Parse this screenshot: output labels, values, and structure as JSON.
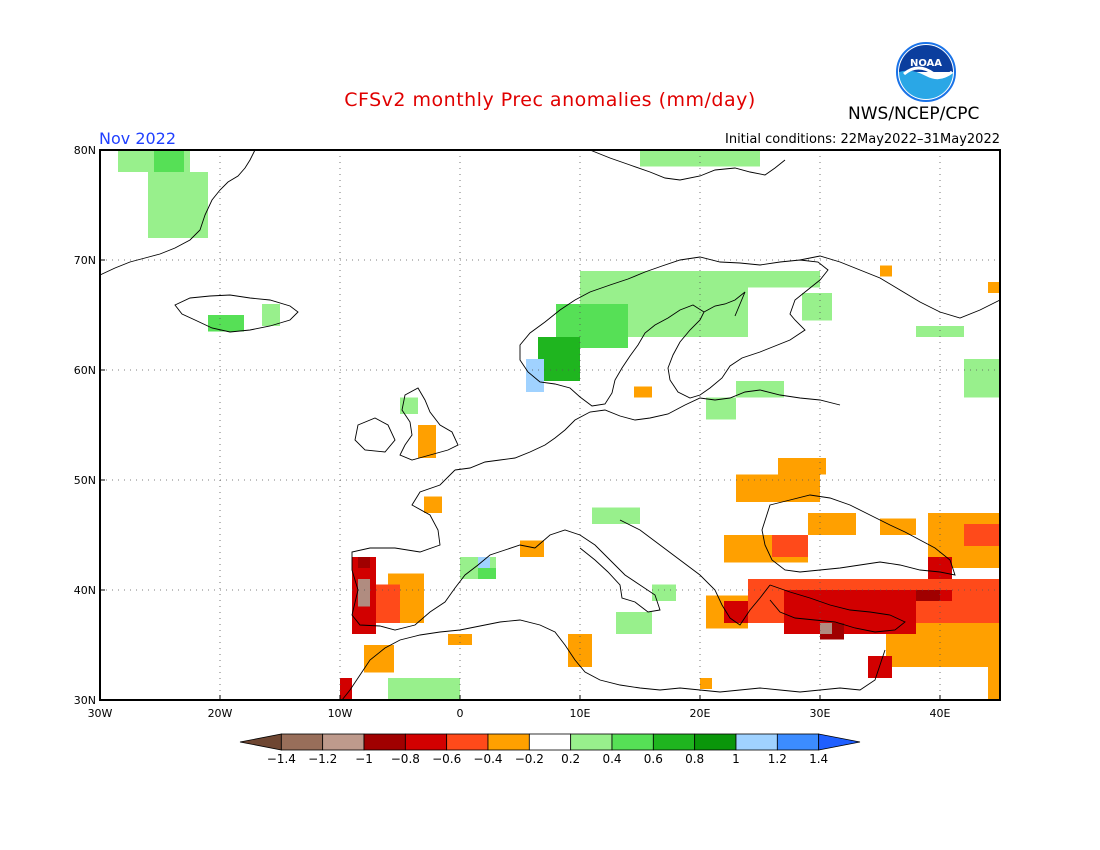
{
  "header": {
    "title": "CFSv2 monthly Prec anomalies (mm/day)",
    "agency": "NWS/NCEP/CPC",
    "logo_text": "NOAA",
    "month": "Nov 2022",
    "initial_conditions": "Initial conditions: 22May2022–31May2022"
  },
  "map": {
    "lon_range": [
      -30,
      45
    ],
    "lat_range": [
      30,
      80
    ],
    "x_ticks": [
      {
        "lon": -30,
        "label": "30W"
      },
      {
        "lon": -20,
        "label": "20W"
      },
      {
        "lon": -10,
        "label": "10W"
      },
      {
        "lon": 0,
        "label": "0"
      },
      {
        "lon": 10,
        "label": "10E"
      },
      {
        "lon": 20,
        "label": "20E"
      },
      {
        "lon": 30,
        "label": "30E"
      },
      {
        "lon": 40,
        "label": "40E"
      }
    ],
    "y_ticks": [
      {
        "lat": 80,
        "label": "80N"
      },
      {
        "lat": 70,
        "label": "70N"
      },
      {
        "lat": 60,
        "label": "60N"
      },
      {
        "lat": 50,
        "label": "50N"
      },
      {
        "lat": 40,
        "label": "40N"
      },
      {
        "lat": 30,
        "label": "30N"
      }
    ],
    "grid": "dotted",
    "anomaly_regions": [
      {
        "level": "0.2 to 0.4",
        "color": "#98f08c",
        "lon": [
          -28.5,
          -22.5
        ],
        "lat": [
          78,
          80
        ]
      },
      {
        "level": "0.4 to 0.6",
        "color": "#56e056",
        "lon": [
          -25.5,
          -23
        ],
        "lat": [
          78,
          80
        ]
      },
      {
        "level": "0.2 to 0.4",
        "color": "#98f08c",
        "lon": [
          -26,
          -21
        ],
        "lat": [
          72,
          78
        ]
      },
      {
        "level": "0.2 to 0.4",
        "color": "#98f08c",
        "lon": [
          -16.5,
          -15
        ],
        "lat": [
          64,
          66
        ]
      },
      {
        "level": "0.4 to 0.6",
        "color": "#56e056",
        "lon": [
          -21,
          -18
        ],
        "lat": [
          63.5,
          65
        ]
      },
      {
        "level": "0.2 to 0.4",
        "color": "#98f08c",
        "lon": [
          15,
          25
        ],
        "lat": [
          78.5,
          80
        ]
      },
      {
        "level": "0.2 to 0.4",
        "color": "#98f08c",
        "lon": [
          10,
          24
        ],
        "lat": [
          63,
          69
        ]
      },
      {
        "level": "0.2 to 0.4",
        "color": "#98f08c",
        "lon": [
          24,
          30
        ],
        "lat": [
          67.5,
          69
        ]
      },
      {
        "level": "0.2 to 0.4",
        "color": "#98f08c",
        "lon": [
          28.5,
          31
        ],
        "lat": [
          64.5,
          67
        ]
      },
      {
        "level": "0.4 to 0.6",
        "color": "#56e056",
        "lon": [
          8,
          14
        ],
        "lat": [
          62,
          66
        ]
      },
      {
        "level": "0.6 to 0.8",
        "color": "#1fb51f",
        "lon": [
          6.5,
          10
        ],
        "lat": [
          59,
          63
        ]
      },
      {
        "level": "1 to 1.2",
        "color": "#a0d2ff",
        "lon": [
          5.5,
          7
        ],
        "lat": [
          58,
          61
        ]
      },
      {
        "level": "0.2 to 0.4",
        "color": "#98f08c",
        "lon": [
          23,
          27
        ],
        "lat": [
          57.5,
          59
        ]
      },
      {
        "level": "0.2 to 0.4",
        "color": "#98f08c",
        "lon": [
          20.5,
          23
        ],
        "lat": [
          55.5,
          57.5
        ]
      },
      {
        "level": "0.2 to 0.4",
        "color": "#98f08c",
        "lon": [
          38,
          42
        ],
        "lat": [
          63,
          64
        ]
      },
      {
        "level": "0.2 to 0.4",
        "color": "#98f08c",
        "lon": [
          42,
          45
        ],
        "lat": [
          57.5,
          61
        ]
      },
      {
        "level": "0.2 to 0.4",
        "color": "#98f08c",
        "lon": [
          -5,
          -3.5
        ],
        "lat": [
          56,
          57.5
        ]
      },
      {
        "level": "0.2 to 0.4",
        "color": "#98f08c",
        "lon": [
          11,
          15
        ],
        "lat": [
          46,
          47.5
        ]
      },
      {
        "level": "0.2 to 0.4",
        "color": "#98f08c",
        "lon": [
          0,
          3
        ],
        "lat": [
          41,
          43
        ]
      },
      {
        "level": "1 to 1.2",
        "color": "#a0d2ff",
        "lon": [
          1.5,
          2.5
        ],
        "lat": [
          42,
          43
        ]
      },
      {
        "level": "0.4 to 0.6",
        "color": "#56e056",
        "lon": [
          1.5,
          3
        ],
        "lat": [
          41,
          42
        ]
      },
      {
        "level": "0.2 to 0.4",
        "color": "#98f08c",
        "lon": [
          -6,
          0
        ],
        "lat": [
          30,
          32
        ]
      },
      {
        "level": "0.2 to 0.4",
        "color": "#98f08c",
        "lon": [
          16,
          18
        ],
        "lat": [
          39,
          40.5
        ]
      },
      {
        "level": "-0.4 to -0.2",
        "color": "#ffa000",
        "lon": [
          -3.5,
          -2
        ],
        "lat": [
          52,
          55
        ]
      },
      {
        "level": "-0.4 to -0.2",
        "color": "#ffa000",
        "lon": [
          -3,
          -1.5
        ],
        "lat": [
          47,
          48.5
        ]
      },
      {
        "level": "-0.4 to -0.2",
        "color": "#ffa000",
        "lon": [
          5,
          7
        ],
        "lat": [
          43,
          44.5
        ]
      },
      {
        "level": "-0.4 to -0.2",
        "color": "#ffa000",
        "lon": [
          -1,
          1
        ],
        "lat": [
          35,
          36
        ]
      },
      {
        "level": "-0.4 to -0.2",
        "color": "#ffa000",
        "lon": [
          9,
          11
        ],
        "lat": [
          33,
          36
        ]
      },
      {
        "level": "-0.4 to -0.2",
        "color": "#ffa000",
        "lon": [
          -8,
          -5.5
        ],
        "lat": [
          32.5,
          35
        ]
      },
      {
        "level": "-0.4 to -0.2",
        "color": "#ffa000",
        "lon": [
          -6,
          -3
        ],
        "lat": [
          37,
          41.5
        ]
      },
      {
        "level": "-0.4 to -0.2",
        "color": "#ffa000",
        "lon": [
          23,
          30
        ],
        "lat": [
          48,
          50.5
        ]
      },
      {
        "level": "-0.4 to -0.2",
        "color": "#ffa000",
        "lon": [
          26.5,
          30.5
        ],
        "lat": [
          50.5,
          52
        ]
      },
      {
        "level": "-0.4 to -0.2",
        "color": "#ffa000",
        "lon": [
          22,
          29
        ],
        "lat": [
          42.5,
          45
        ]
      },
      {
        "level": "-0.4 to -0.2",
        "color": "#ffa000",
        "lon": [
          29,
          33
        ],
        "lat": [
          45,
          47
        ]
      },
      {
        "level": "-0.4 to -0.2",
        "color": "#ffa000",
        "lon": [
          35,
          38
        ],
        "lat": [
          45,
          46.5
        ]
      },
      {
        "level": "-0.4 to -0.2",
        "color": "#ffa000",
        "lon": [
          39,
          45
        ],
        "lat": [
          42,
          47
        ]
      },
      {
        "level": "-0.4 to -0.2",
        "color": "#ffa000",
        "lon": [
          20.5,
          24
        ],
        "lat": [
          36.5,
          39.5
        ]
      },
      {
        "level": "-0.4 to -0.2",
        "color": "#ffa000",
        "lon": [
          35.5,
          45
        ],
        "lat": [
          33,
          37
        ]
      },
      {
        "level": "-0.4 to -0.2",
        "color": "#ffa000",
        "lon": [
          20,
          21
        ],
        "lat": [
          31,
          32
        ]
      },
      {
        "level": "-0.4 to -0.2",
        "color": "#ffa000",
        "lon": [
          44,
          45
        ],
        "lat": [
          30,
          34
        ]
      },
      {
        "level": "-0.4 to -0.2",
        "color": "#ffa000",
        "lon": [
          44,
          45
        ],
        "lat": [
          67,
          68
        ]
      },
      {
        "level": "-0.4 to -0.2",
        "color": "#ffa000",
        "lon": [
          35,
          36
        ],
        "lat": [
          68.5,
          69.5
        ]
      },
      {
        "level": "-0.4 to -0.2",
        "color": "#ffa000",
        "lon": [
          14.5,
          16
        ],
        "lat": [
          57.5,
          58.5
        ]
      },
      {
        "level": "-0.6 to -0.4",
        "color": "#ff4a1a",
        "lon": [
          24,
          45
        ],
        "lat": [
          37,
          41
        ]
      },
      {
        "level": "-0.6 to -0.4",
        "color": "#ff4a1a",
        "lon": [
          -9,
          -5
        ],
        "lat": [
          37,
          40.5
        ]
      },
      {
        "level": "-0.6 to -0.4",
        "color": "#ff4a1a",
        "lon": [
          42,
          45
        ],
        "lat": [
          44,
          46
        ]
      },
      {
        "level": "-0.6 to -0.4",
        "color": "#ff4a1a",
        "lon": [
          26,
          29
        ],
        "lat": [
          43,
          45
        ]
      },
      {
        "level": "-0.8 to -0.6",
        "color": "#d20000",
        "lon": [
          27,
          38
        ],
        "lat": [
          36,
          40
        ]
      },
      {
        "level": "-0.8 to -0.6",
        "color": "#d20000",
        "lon": [
          -9,
          -7
        ],
        "lat": [
          36,
          43
        ]
      },
      {
        "level": "-0.8 to -0.6",
        "color": "#d20000",
        "lon": [
          38,
          41
        ],
        "lat": [
          39,
          40
        ]
      },
      {
        "level": "-0.8 to -0.6",
        "color": "#d20000",
        "lon": [
          22,
          24
        ],
        "lat": [
          37,
          39
        ]
      },
      {
        "level": "-0.8 to -0.6",
        "color": "#d20000",
        "lon": [
          34,
          36
        ],
        "lat": [
          32,
          34
        ]
      },
      {
        "level": "-0.8 to -0.6",
        "color": "#d20000",
        "lon": [
          -10,
          -9
        ],
        "lat": [
          30,
          32
        ]
      },
      {
        "level": "-0.8 to -0.6",
        "color": "#d20000",
        "lon": [
          39,
          41
        ],
        "lat": [
          41,
          43
        ]
      },
      {
        "level": "-1 to -0.8",
        "color": "#a00000",
        "lon": [
          -8.5,
          -7.5
        ],
        "lat": [
          42,
          43
        ]
      },
      {
        "level": "-1 to -0.8",
        "color": "#a00000",
        "lon": [
          38,
          40
        ],
        "lat": [
          39,
          40
        ]
      },
      {
        "level": "-1 to -0.8",
        "color": "#a00000",
        "lon": [
          30,
          32
        ],
        "lat": [
          35.5,
          37
        ]
      },
      {
        "level": "-1.2 to -1",
        "color": "#b08c80",
        "lon": [
          -8.5,
          -7.5
        ],
        "lat": [
          38.5,
          41
        ]
      },
      {
        "level": "-1.2 to -1",
        "color": "#b08c80",
        "lon": [
          30,
          31
        ],
        "lat": [
          36,
          37
        ]
      },
      {
        "level": "0.2 to 0.4",
        "color": "#98f08c",
        "lon": [
          13,
          16
        ],
        "lat": [
          36,
          38
        ]
      }
    ]
  },
  "colorbar": {
    "colors": [
      "#6e4632",
      "#986e5a",
      "#be9a8c",
      "#a00000",
      "#d20000",
      "#ff4a1a",
      "#ffa000",
      "#ffffff",
      "#98f08c",
      "#56e056",
      "#1fb51f",
      "#0a960a",
      "#a0d2ff",
      "#3c8cff",
      "#1f5fff"
    ],
    "labels": [
      "-1.4",
      "-1.2",
      "-1",
      "-0.8",
      "-0.6",
      "-0.4",
      "-0.2",
      "0.2",
      "0.4",
      "0.6",
      "0.8",
      "1",
      "1.2",
      "1.4"
    ]
  }
}
